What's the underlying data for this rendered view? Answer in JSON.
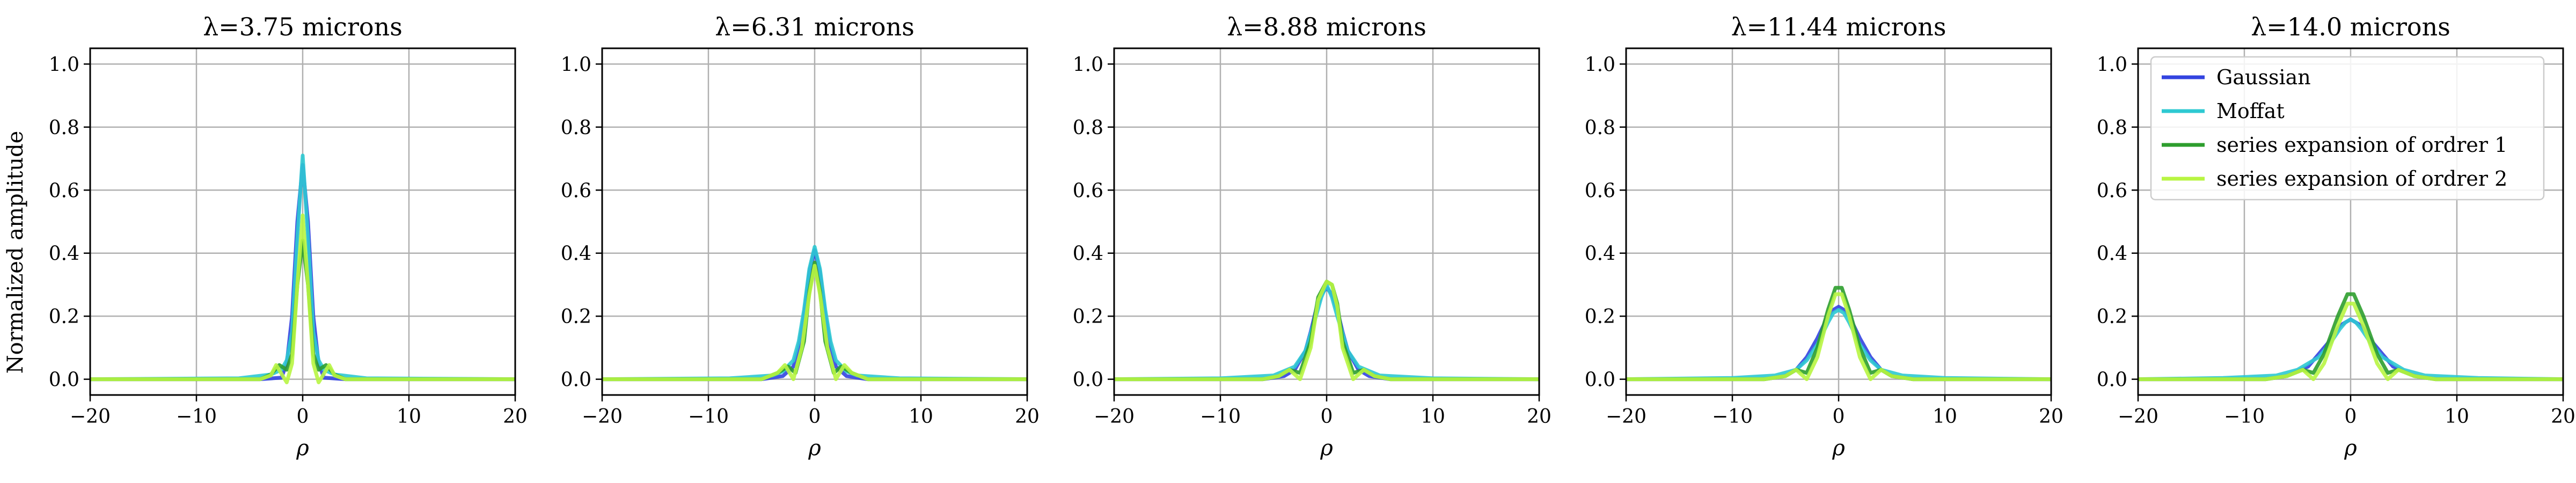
{
  "colors": {
    "Gaussian": "#3344e0",
    "Moffat": "#2ec9d2",
    "series1": "#2e9e2e",
    "series2": "#b8f542",
    "grid": "#b0b0b0"
  },
  "shared_ylabel": "Normalized amplitude",
  "chart_data": [
    {
      "type": "line",
      "title": "λ=3.75 microns",
      "xlabel": "ρ",
      "xlim": [
        -20,
        20
      ],
      "ylim": [
        -0.05,
        1.05
      ],
      "xticks": [
        -20,
        -10,
        0,
        10,
        20
      ],
      "xtick_labels": [
        "−20",
        "−10",
        "0",
        "10",
        "20"
      ],
      "yticks": [
        0.0,
        0.2,
        0.4,
        0.6,
        0.8,
        1.0
      ],
      "ytick_labels": [
        "0.0",
        "0.2",
        "0.4",
        "0.6",
        "0.8",
        "1.0"
      ],
      "grid": true,
      "series": [
        {
          "name": "Gaussian",
          "x": [
            -20,
            -4,
            -2,
            -1.5,
            -1,
            -0.5,
            0,
            0.5,
            1,
            1.5,
            2,
            4,
            20
          ],
          "y": [
            0,
            0,
            0.005,
            0.05,
            0.2,
            0.5,
            0.68,
            0.5,
            0.2,
            0.05,
            0.005,
            0,
            0
          ]
        },
        {
          "name": "Moffat",
          "x": [
            -20,
            -6,
            -3,
            -2,
            -1.5,
            -1,
            -0.5,
            0,
            0.5,
            1,
            1.5,
            2,
            3,
            6,
            20
          ],
          "y": [
            0,
            0.003,
            0.015,
            0.03,
            0.06,
            0.15,
            0.45,
            0.71,
            0.45,
            0.15,
            0.06,
            0.03,
            0.015,
            0.003,
            0
          ]
        },
        {
          "name": "series expansion of ordrer 1",
          "x": [
            -20,
            -4,
            -3,
            -2.2,
            -1.5,
            -1,
            -0.5,
            0,
            0.5,
            1,
            1.5,
            2.2,
            3,
            4,
            20
          ],
          "y": [
            0,
            0,
            0.015,
            0.045,
            0.03,
            0.08,
            0.3,
            0.44,
            0.3,
            0.08,
            0.03,
            0.045,
            0.015,
            0,
            0
          ]
        },
        {
          "name": "series expansion of ordrer 2",
          "x": [
            -20,
            -4,
            -3,
            -2.5,
            -1.5,
            -1,
            -0.5,
            0,
            0.5,
            1,
            1.5,
            2.5,
            3,
            4,
            20
          ],
          "y": [
            0,
            0,
            0.012,
            0.045,
            -0.01,
            0.05,
            0.3,
            0.52,
            0.3,
            0.05,
            -0.01,
            0.045,
            0.012,
            0,
            0
          ]
        }
      ]
    },
    {
      "type": "line",
      "title": "λ=6.31 microns",
      "xlabel": "ρ",
      "xlim": [
        -20,
        20
      ],
      "ylim": [
        -0.05,
        1.05
      ],
      "xticks": [
        -20,
        -10,
        0,
        10,
        20
      ],
      "xtick_labels": [
        "−20",
        "−10",
        "0",
        "10",
        "20"
      ],
      "yticks": [
        0.0,
        0.2,
        0.4,
        0.6,
        0.8,
        1.0
      ],
      "ytick_labels": [
        "0.0",
        "0.2",
        "0.4",
        "0.6",
        "0.8",
        "1.0"
      ],
      "grid": true,
      "series": [
        {
          "name": "Gaussian",
          "x": [
            -20,
            -5,
            -3,
            -2,
            -1.5,
            -1,
            -0.5,
            0,
            0.5,
            1,
            1.5,
            2,
            3,
            5,
            20
          ],
          "y": [
            0,
            0,
            0.01,
            0.04,
            0.1,
            0.2,
            0.34,
            0.41,
            0.34,
            0.2,
            0.1,
            0.04,
            0.01,
            0,
            0
          ]
        },
        {
          "name": "Moffat",
          "x": [
            -20,
            -8,
            -4,
            -3,
            -2,
            -1.5,
            -1,
            -0.5,
            0,
            0.5,
            1,
            1.5,
            2,
            3,
            4,
            8,
            20
          ],
          "y": [
            0,
            0.003,
            0.012,
            0.025,
            0.06,
            0.12,
            0.22,
            0.35,
            0.42,
            0.35,
            0.22,
            0.12,
            0.06,
            0.025,
            0.012,
            0.003,
            0
          ]
        },
        {
          "name": "series expansion of ordrer 1",
          "x": [
            -20,
            -5,
            -3.5,
            -2.5,
            -1.8,
            -1,
            -0.5,
            0,
            0.5,
            1,
            1.8,
            2.5,
            3.5,
            5,
            20
          ],
          "y": [
            0,
            0,
            0.02,
            0.04,
            0.02,
            0.12,
            0.28,
            0.37,
            0.28,
            0.12,
            0.02,
            0.04,
            0.02,
            0,
            0
          ]
        },
        {
          "name": "series expansion of ordrer 2",
          "x": [
            -20,
            -5,
            -3.5,
            -2.8,
            -2,
            -1.2,
            -0.5,
            0,
            0.5,
            1.2,
            2,
            2.8,
            3.5,
            5,
            20
          ],
          "y": [
            0,
            0,
            0.02,
            0.045,
            0.0,
            0.1,
            0.27,
            0.36,
            0.27,
            0.1,
            0.0,
            0.045,
            0.02,
            0,
            0
          ]
        }
      ]
    },
    {
      "type": "line",
      "title": "λ=8.88 microns",
      "xlabel": "ρ",
      "xlim": [
        -20,
        20
      ],
      "ylim": [
        -0.05,
        1.05
      ],
      "xticks": [
        -20,
        -10,
        0,
        10,
        20
      ],
      "xtick_labels": [
        "−20",
        "−10",
        "0",
        "10",
        "20"
      ],
      "yticks": [
        0.0,
        0.2,
        0.4,
        0.6,
        0.8,
        1.0
      ],
      "ytick_labels": [
        "0.0",
        "0.2",
        "0.4",
        "0.6",
        "0.8",
        "1.0"
      ],
      "grid": true,
      "series": [
        {
          "name": "Gaussian",
          "x": [
            -20,
            -6,
            -4,
            -3,
            -2,
            -1.5,
            -1,
            -0.5,
            0,
            0.5,
            1,
            1.5,
            2,
            3,
            4,
            6,
            20
          ],
          "y": [
            0,
            0,
            0.01,
            0.03,
            0.09,
            0.15,
            0.22,
            0.27,
            0.29,
            0.27,
            0.22,
            0.15,
            0.09,
            0.03,
            0.01,
            0,
            0
          ]
        },
        {
          "name": "Moffat",
          "x": [
            -20,
            -10,
            -5,
            -3,
            -2,
            -1,
            -0.5,
            0,
            0.5,
            1,
            2,
            3,
            5,
            10,
            20
          ],
          "y": [
            0,
            0.003,
            0.012,
            0.04,
            0.09,
            0.2,
            0.26,
            0.3,
            0.26,
            0.2,
            0.09,
            0.04,
            0.012,
            0.003,
            0
          ]
        },
        {
          "name": "series expansion of ordrer 1",
          "x": [
            -20,
            -6,
            -4.5,
            -3.5,
            -2.5,
            -1.5,
            -0.8,
            0,
            0.5,
            1,
            1.5,
            2.5,
            3.5,
            4.5,
            6,
            20
          ],
          "y": [
            0,
            0,
            0.01,
            0.03,
            0.02,
            0.12,
            0.26,
            0.31,
            0.3,
            0.24,
            0.12,
            0.02,
            0.03,
            0.01,
            0,
            0
          ]
        },
        {
          "name": "series expansion of ordrer 2",
          "x": [
            -20,
            -6,
            -4.5,
            -3.5,
            -2.5,
            -1.5,
            -0.8,
            0,
            0.5,
            1,
            1.5,
            2.5,
            3.5,
            4.5,
            6,
            20
          ],
          "y": [
            0,
            0,
            0.01,
            0.03,
            0.0,
            0.1,
            0.25,
            0.31,
            0.3,
            0.23,
            0.1,
            0.0,
            0.03,
            0.01,
            0,
            0
          ]
        }
      ]
    },
    {
      "type": "line",
      "title": "λ=11.44 microns",
      "xlabel": "ρ",
      "xlim": [
        -20,
        20
      ],
      "ylim": [
        -0.05,
        1.05
      ],
      "xticks": [
        -20,
        -10,
        0,
        10,
        20
      ],
      "xtick_labels": [
        "−20",
        "−10",
        "0",
        "10",
        "20"
      ],
      "yticks": [
        0.0,
        0.2,
        0.4,
        0.6,
        0.8,
        1.0
      ],
      "ytick_labels": [
        "0.0",
        "0.2",
        "0.4",
        "0.6",
        "0.8",
        "1.0"
      ],
      "grid": true,
      "series": [
        {
          "name": "Gaussian",
          "x": [
            -20,
            -7,
            -5,
            -4,
            -3,
            -2,
            -1,
            -0.5,
            0,
            0.5,
            1,
            2,
            3,
            4,
            5,
            7,
            20
          ],
          "y": [
            0,
            0,
            0.01,
            0.03,
            0.07,
            0.13,
            0.2,
            0.22,
            0.23,
            0.22,
            0.2,
            0.13,
            0.07,
            0.03,
            0.01,
            0,
            0
          ]
        },
        {
          "name": "Moffat",
          "x": [
            -20,
            -10,
            -6,
            -4,
            -3,
            -2,
            -1,
            -0.5,
            0,
            0.5,
            1,
            2,
            3,
            4,
            6,
            10,
            20
          ],
          "y": [
            0,
            0.004,
            0.012,
            0.03,
            0.06,
            0.11,
            0.18,
            0.21,
            0.22,
            0.21,
            0.18,
            0.11,
            0.06,
            0.03,
            0.012,
            0.004,
            0
          ]
        },
        {
          "name": "series expansion of ordrer 1",
          "x": [
            -20,
            -7,
            -5,
            -4,
            -3,
            -2,
            -1,
            -0.3,
            0.3,
            1,
            2,
            3,
            4,
            5,
            7,
            20
          ],
          "y": [
            0,
            0,
            0.01,
            0.03,
            0.02,
            0.1,
            0.22,
            0.29,
            0.29,
            0.22,
            0.1,
            0.02,
            0.03,
            0.01,
            0,
            0
          ]
        },
        {
          "name": "series expansion of ordrer 2",
          "x": [
            -20,
            -7,
            -5,
            -4,
            -3,
            -2,
            -1,
            -0.3,
            0.3,
            1,
            2,
            3,
            4,
            5,
            7,
            20
          ],
          "y": [
            0,
            0,
            0.01,
            0.03,
            0.0,
            0.07,
            0.2,
            0.27,
            0.27,
            0.2,
            0.07,
            0.0,
            0.03,
            0.01,
            0,
            0
          ]
        }
      ]
    },
    {
      "type": "line",
      "title": "λ=14.0 microns",
      "xlabel": "ρ",
      "xlim": [
        -20,
        20
      ],
      "ylim": [
        -0.05,
        1.05
      ],
      "xticks": [
        -20,
        -10,
        0,
        10,
        20
      ],
      "xtick_labels": [
        "−20",
        "−10",
        "0",
        "10",
        "20"
      ],
      "yticks": [
        0.0,
        0.2,
        0.4,
        0.6,
        0.8,
        1.0
      ],
      "ytick_labels": [
        "0.0",
        "0.2",
        "0.4",
        "0.6",
        "0.8",
        "1.0"
      ],
      "grid": true,
      "legend": "upper-right",
      "series": [
        {
          "name": "Gaussian",
          "x": [
            -20,
            -8,
            -6,
            -4,
            -3,
            -2,
            -1,
            -0.5,
            0,
            0.5,
            1,
            2,
            3,
            4,
            6,
            8,
            20
          ],
          "y": [
            0,
            0,
            0.01,
            0.04,
            0.08,
            0.12,
            0.17,
            0.18,
            0.19,
            0.18,
            0.17,
            0.12,
            0.08,
            0.04,
            0.01,
            0,
            0
          ]
        },
        {
          "name": "Moffat",
          "x": [
            -20,
            -12,
            -7,
            -5,
            -3,
            -2,
            -1,
            -0.5,
            0,
            0.5,
            1,
            2,
            3,
            5,
            7,
            12,
            20
          ],
          "y": [
            0,
            0.004,
            0.012,
            0.03,
            0.07,
            0.11,
            0.16,
            0.18,
            0.19,
            0.18,
            0.16,
            0.11,
            0.07,
            0.03,
            0.012,
            0.004,
            0
          ]
        },
        {
          "name": "series expansion of ordrer 1",
          "x": [
            -20,
            -8,
            -6,
            -4.5,
            -3.5,
            -2.5,
            -1.2,
            -0.3,
            0.3,
            1.2,
            2.5,
            3.5,
            4.5,
            6,
            8,
            20
          ],
          "y": [
            0,
            0,
            0.01,
            0.03,
            0.02,
            0.08,
            0.2,
            0.27,
            0.27,
            0.2,
            0.08,
            0.02,
            0.03,
            0.01,
            0,
            0
          ]
        },
        {
          "name": "series expansion of ordrer 2",
          "x": [
            -20,
            -8,
            -6,
            -4.5,
            -3.5,
            -2.5,
            -1.2,
            -0.3,
            0.3,
            1.2,
            2.5,
            3.5,
            4.5,
            6,
            8,
            20
          ],
          "y": [
            0,
            0,
            0.01,
            0.03,
            0.0,
            0.05,
            0.17,
            0.24,
            0.24,
            0.17,
            0.05,
            0.0,
            0.03,
            0.01,
            0,
            0
          ]
        }
      ]
    }
  ]
}
